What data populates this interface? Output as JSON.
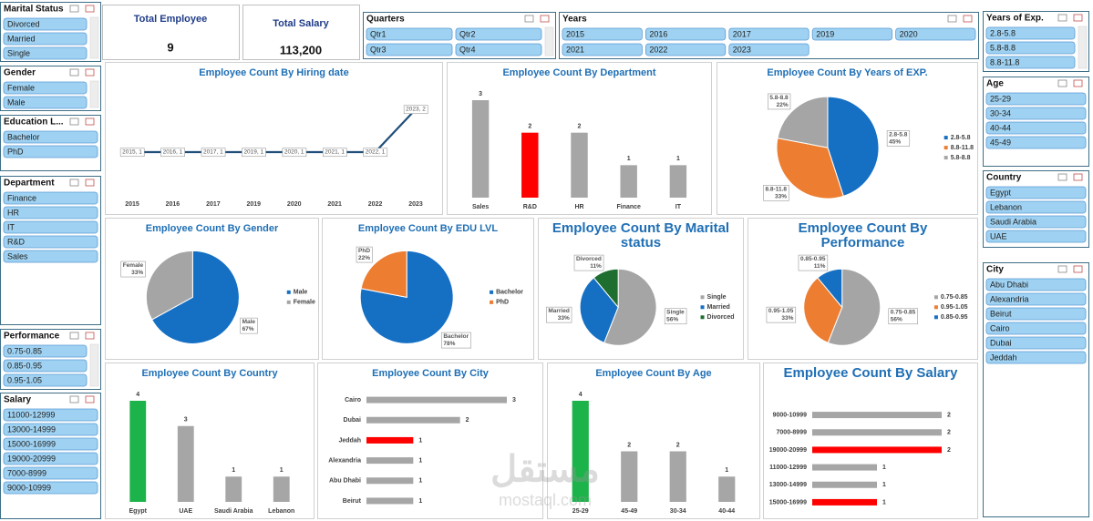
{
  "kpis": [
    {
      "label": "Total Employee",
      "value": "9"
    },
    {
      "label": "Total Salary",
      "value": "113,200"
    }
  ],
  "slicers": [
    {
      "title": "Marital Status",
      "items": [
        "Divorced",
        "Married",
        "Single"
      ]
    },
    {
      "title": "Gender",
      "items": [
        "Female",
        "Male"
      ]
    },
    {
      "title": "Education L...",
      "items": [
        "Bachelor",
        "PhD"
      ]
    },
    {
      "title": "Department",
      "items": [
        "Finance",
        "HR",
        "IT",
        "R&D",
        "Sales"
      ]
    },
    {
      "title": "Performance",
      "items": [
        "0.75-0.85",
        "0.85-0.95",
        "0.95-1.05"
      ]
    },
    {
      "title": "Salary",
      "items": [
        "11000-12999",
        "13000-14999",
        "15000-16999",
        "19000-20999",
        "7000-8999",
        "9000-10999"
      ]
    },
    {
      "title": "Quarters",
      "items": [
        "Qtr1",
        "Qtr2",
        "Qtr3",
        "Qtr4"
      ]
    },
    {
      "title": "Years",
      "items": [
        "2015",
        "2016",
        "2017",
        "2019",
        "2020",
        "2021",
        "2022",
        "2023"
      ]
    },
    {
      "title": "Years of Exp.",
      "items": [
        "2.8-5.8",
        "5.8-8.8",
        "8.8-11.8"
      ]
    },
    {
      "title": "Age",
      "items": [
        "25-29",
        "30-34",
        "40-44",
        "45-49"
      ]
    },
    {
      "title": "Country",
      "items": [
        "Egypt",
        "Lebanon",
        "Saudi Arabia",
        "UAE"
      ]
    },
    {
      "title": "City",
      "items": [
        "Abu Dhabi",
        "Alexandria",
        "Beirut",
        "Cairo",
        "Dubai",
        "Jeddah"
      ]
    }
  ],
  "chart_data": [
    {
      "type": "line",
      "title": "Employee Count By Hiring date",
      "categories": [
        "2015",
        "2016",
        "2017",
        "2019",
        "2020",
        "2021",
        "2022",
        "2023"
      ],
      "values": [
        1,
        1,
        1,
        1,
        1,
        1,
        1,
        2
      ],
      "value_labels": [
        "2015, 1",
        "2016, 1",
        "2017, 1",
        "2019, 1",
        "2020, 1",
        "2021, 1",
        "2022, 1",
        "2023, 2"
      ],
      "color": "#1f4e79"
    },
    {
      "type": "bar",
      "title": "Employee Count By Department",
      "categories": [
        "Sales",
        "R&D",
        "HR",
        "Finance",
        "IT"
      ],
      "values": [
        3,
        2,
        2,
        1,
        1
      ],
      "colors": [
        "#a6a6a6",
        "#ff0000",
        "#a6a6a6",
        "#a6a6a6",
        "#a6a6a6"
      ]
    },
    {
      "type": "pie",
      "title": "Employee Count By Years of EXP.",
      "categories": [
        "2.8-5.8",
        "8.8-11.8",
        "5.8-8.8"
      ],
      "values": [
        45,
        33,
        22
      ],
      "value_labels": [
        "45%",
        "33%",
        "22%"
      ],
      "colors": [
        "#1570c4",
        "#ed7d31",
        "#a5a5a5"
      ]
    },
    {
      "type": "pie",
      "title": "Employee Count By Gender",
      "categories": [
        "Male",
        "Female"
      ],
      "values": [
        67,
        33
      ],
      "value_labels": [
        "67%",
        "33%"
      ],
      "colors": [
        "#1570c4",
        "#a5a5a5"
      ]
    },
    {
      "type": "pie",
      "title": "Employee Count By EDU LVL",
      "categories": [
        "Bachelor",
        "PhD"
      ],
      "values": [
        78,
        22
      ],
      "value_labels": [
        "78%",
        "22%"
      ],
      "colors": [
        "#1570c4",
        "#ed7d31"
      ]
    },
    {
      "type": "pie",
      "title": "Employee Count By Marital status",
      "categories": [
        "Single",
        "Married",
        "Divorced"
      ],
      "values": [
        56,
        33,
        11
      ],
      "value_labels": [
        "56%",
        "33%",
        "11%"
      ],
      "colors": [
        "#a5a5a5",
        "#1570c4",
        "#1e6e30"
      ]
    },
    {
      "type": "pie",
      "title": "Employee Count By Performance",
      "categories": [
        "0.75-0.85",
        "0.95-1.05",
        "0.85-0.95"
      ],
      "values": [
        56,
        33,
        11
      ],
      "value_labels": [
        "56%",
        "33%",
        "11%"
      ],
      "colors": [
        "#a5a5a5",
        "#ed7d31",
        "#1570c4"
      ]
    },
    {
      "type": "bar",
      "title": "Employee Count By Country",
      "categories": [
        "Egypt",
        "UAE",
        "Saudi Arabia",
        "Lebanon"
      ],
      "values": [
        4,
        3,
        1,
        1
      ],
      "colors": [
        "#1db34b",
        "#a6a6a6",
        "#a6a6a6",
        "#a6a6a6"
      ]
    },
    {
      "type": "hbar",
      "title": "Employee Count By City",
      "categories": [
        "Cairo",
        "Dubai",
        "Jeddah",
        "Alexandria",
        "Abu Dhabi",
        "Beirut"
      ],
      "values": [
        3,
        2,
        1,
        1,
        1,
        1
      ],
      "colors": [
        "#a6a6a6",
        "#a6a6a6",
        "#ff0000",
        "#a6a6a6",
        "#a6a6a6",
        "#a6a6a6"
      ]
    },
    {
      "type": "bar",
      "title": "Employee Count By Age",
      "categories": [
        "25-29",
        "45-49",
        "30-34",
        "40-44"
      ],
      "values": [
        4,
        2,
        2,
        1
      ],
      "colors": [
        "#1db34b",
        "#a6a6a6",
        "#a6a6a6",
        "#a6a6a6"
      ]
    },
    {
      "type": "hbar",
      "title": "Employee Count By Salary",
      "categories": [
        "9000-10999",
        "7000-8999",
        "19000-20999",
        "11000-12999",
        "13000-14999",
        "15000-16999"
      ],
      "values": [
        2,
        2,
        2,
        1,
        1,
        1
      ],
      "colors": [
        "#a6a6a6",
        "#a6a6a6",
        "#ff0000",
        "#a6a6a6",
        "#a6a6a6",
        "#ff0000"
      ]
    }
  ],
  "watermark": {
    "logo": "مستقل",
    "site": "mostaql.com"
  }
}
